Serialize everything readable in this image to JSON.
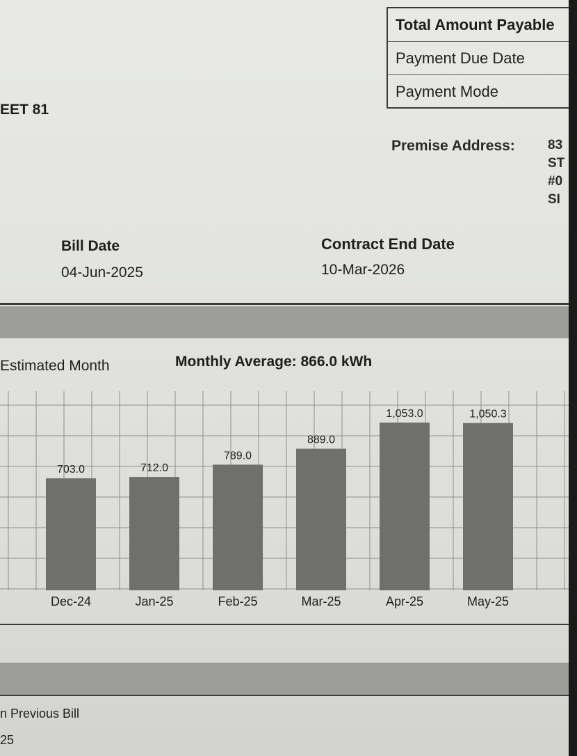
{
  "summary_table": {
    "total_amount_payable_label": "Total Amount Payable",
    "payment_due_date_label": "Payment Due Date",
    "payment_mode_label": "Payment Mode"
  },
  "customer": {
    "street_fragment": "EET 81"
  },
  "premise_address": {
    "label": "Premise Address:",
    "line1": "83",
    "line2": "ST",
    "line3": "#0",
    "line4": "SI"
  },
  "bill_info": {
    "bill_date_label": "Bill Date",
    "bill_date_value": "04-Jun-2025",
    "contract_end_label": "Contract End Date",
    "contract_end_value": "10-Mar-2026"
  },
  "consumption": {
    "estimated_label": "Estimated Month",
    "monthly_average": "Monthly Average: 866.0 kWh"
  },
  "chart_data": {
    "type": "bar",
    "categories": [
      "Dec-24",
      "Jan-25",
      "Feb-25",
      "Mar-25",
      "Apr-25",
      "May-25"
    ],
    "values": [
      703.0,
      712.0,
      789.0,
      889.0,
      1053.0,
      1050.3
    ],
    "value_labels": [
      "703.0",
      "712.0",
      "789.0",
      "889.0",
      "1,053.0",
      "1,050.3"
    ],
    "ylim": [
      0,
      1250
    ],
    "grid": true,
    "bar_color": "#6f6f6e"
  },
  "footer": {
    "previous_bill_fragment": "n Previous Bill",
    "previous_value_fragment": "25"
  }
}
